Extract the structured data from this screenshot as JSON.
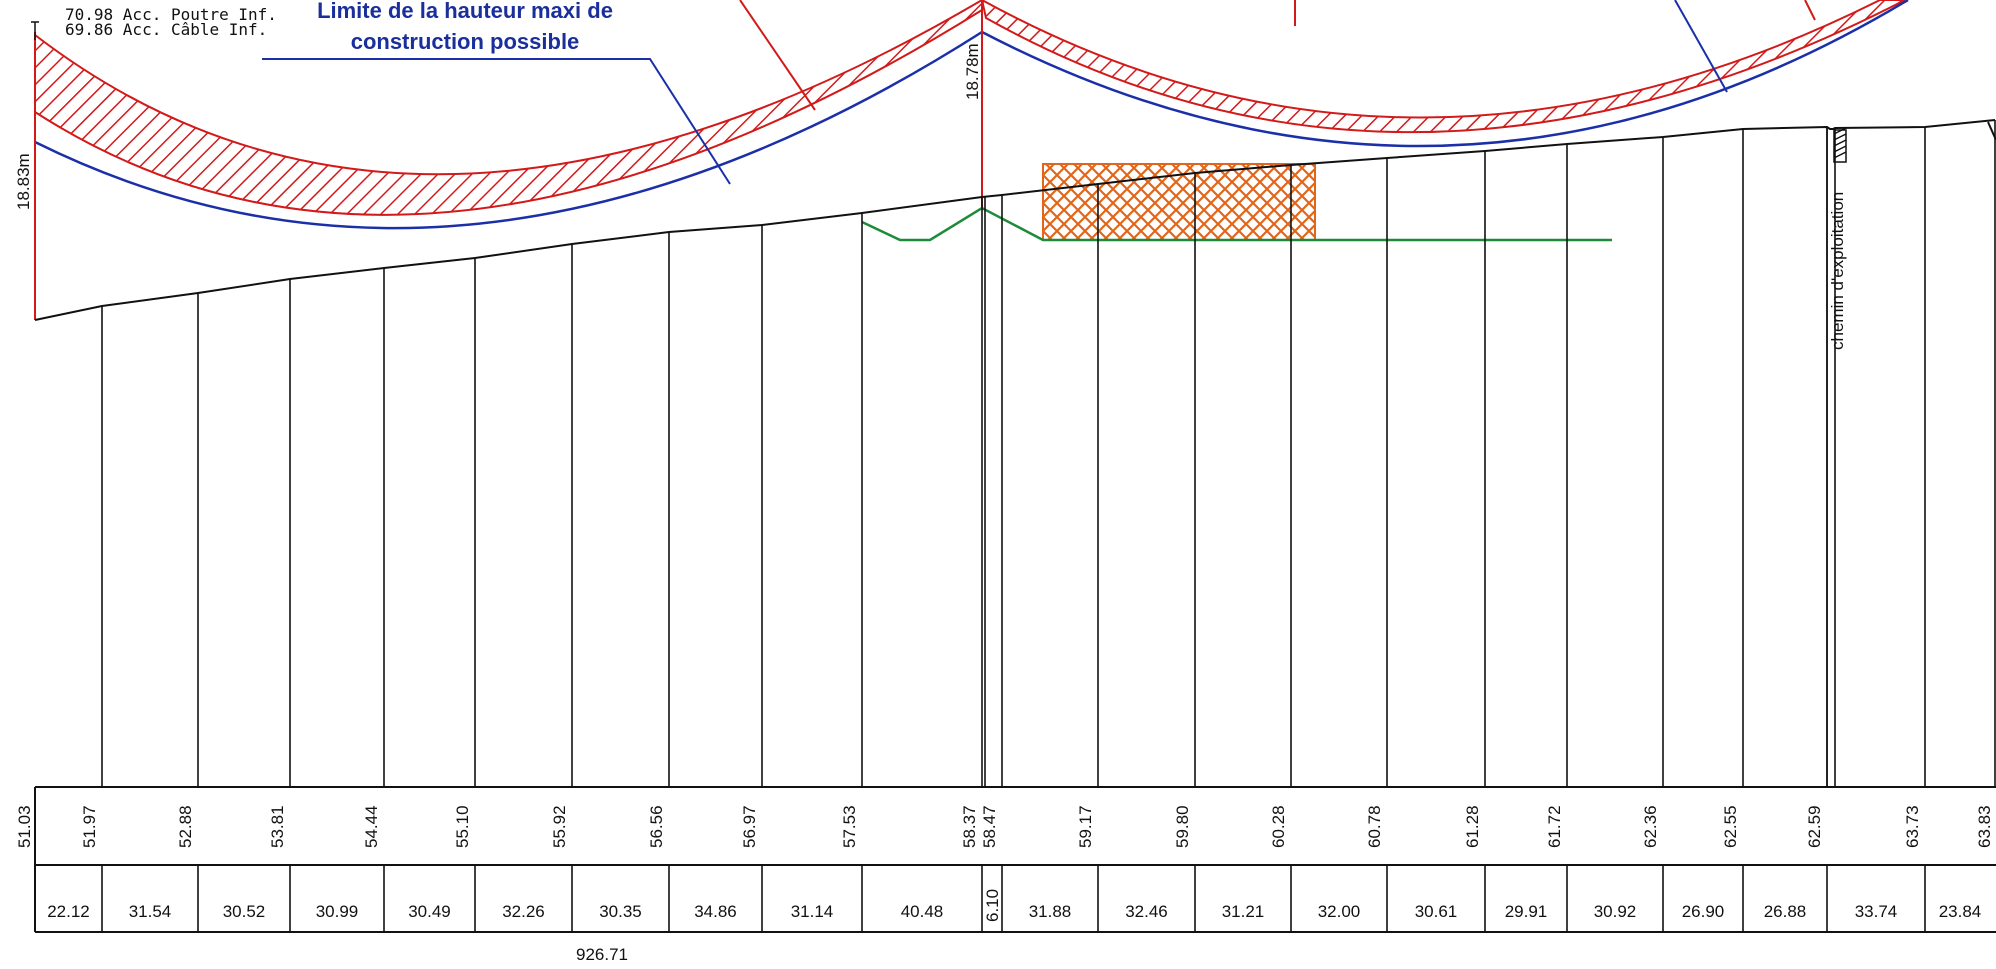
{
  "annotations": {
    "acc_poutre": "70.98  Acc. Poutre Inf.",
    "acc_cable": "69.86  Acc. Câble Inf.",
    "title_line1": "Limite de la hauteur maxi de",
    "title_line2": "construction possible",
    "height_left": "18.83m",
    "height_mid": "18.78m",
    "chemin": "chemin d'exploitation",
    "total_length": "926.71"
  },
  "colors": {
    "conductor_red": "#d21a1a",
    "clearance_blue": "#1a2fa8",
    "ground_black": "#111111",
    "green_profile": "#1e8a3a",
    "orange_hatch": "#e2661a"
  },
  "ground_elevations": [
    "51.03",
    "51.97",
    "52.88",
    "53.81",
    "54.44",
    "55.10",
    "55.92",
    "56.56",
    "56.97",
    "57.53",
    "58.37",
    "58.47",
    "59.17",
    "59.80",
    "60.28",
    "60.78",
    "61.28",
    "61.72",
    "62.36",
    "62.55",
    "62.59",
    "63.73",
    "63.83"
  ],
  "distances": [
    "22.12",
    "31.54",
    "30.52",
    "30.99",
    "30.49",
    "32.26",
    "30.35",
    "34.86",
    "31.14",
    "40.48",
    "6.10",
    "31.88",
    "32.46",
    "31.21",
    "32.00",
    "30.61",
    "29.91",
    "30.92",
    "26.90",
    "26.88",
    "33.74",
    "23.84"
  ]
}
